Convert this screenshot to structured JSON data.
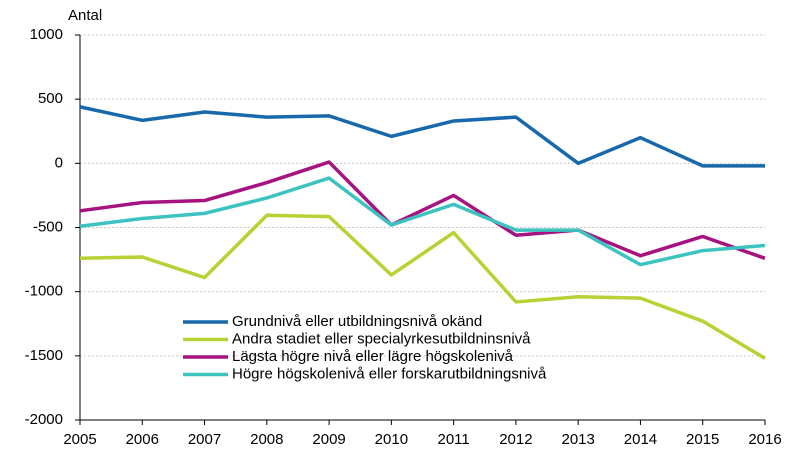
{
  "chart_data": {
    "type": "line",
    "y_label": "Antal",
    "categories": [
      "2005",
      "2006",
      "2007",
      "2008",
      "2009",
      "2010",
      "2011",
      "2012",
      "2013",
      "2014",
      "2015",
      "2016"
    ],
    "series": [
      {
        "name": "Grundnivå eller utbildningsnivå okänd",
        "color": "#1769ab",
        "values": [
          440,
          335,
          400,
          360,
          370,
          210,
          330,
          360,
          0,
          200,
          -20,
          -20
        ]
      },
      {
        "name": "Andra stadiet eller specialyrkesutbildninsnivå",
        "color": "#b5d334",
        "values": [
          -740,
          -730,
          -890,
          -405,
          -415,
          -870,
          -540,
          -1080,
          -1040,
          -1050,
          -1230,
          -1520
        ]
      },
      {
        "name": "Lägsta högre nivå eller lägre högskolenivå",
        "color": "#a6127f",
        "values": [
          -370,
          -305,
          -290,
          -150,
          10,
          -480,
          -250,
          -560,
          -520,
          -720,
          -570,
          -740
        ]
      },
      {
        "name": "Högre högskolenivå eller forskarutbildningsnivå",
        "color": "#3cc3c0",
        "values": [
          -490,
          -430,
          -390,
          -270,
          -115,
          -480,
          -320,
          -520,
          -520,
          -790,
          -680,
          -640
        ]
      }
    ],
    "ylim": [
      -2000,
      1000
    ],
    "yticks": [
      -2000,
      -1500,
      -1000,
      -500,
      0,
      500,
      1000
    ],
    "grid": true,
    "legend": "bottom"
  }
}
